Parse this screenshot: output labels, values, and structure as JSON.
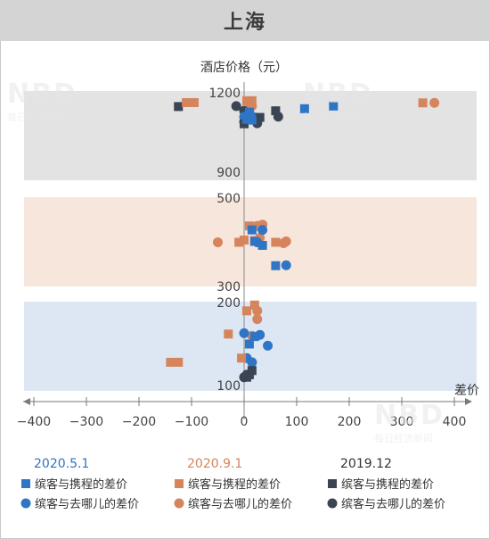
{
  "title": "上海",
  "watermark": {
    "logo": "NBD",
    "sub": "每日经济新闻"
  },
  "chart_data": {
    "type": "scatter",
    "title": "上海",
    "xlabel": "差价",
    "ylabel": "酒店价格（元）",
    "xlim": [
      -400,
      400
    ],
    "x_ticks": [
      "−400",
      "−300",
      "−200",
      "−100",
      "0",
      "100",
      "200",
      "300",
      "400"
    ],
    "panels": [
      {
        "band": "high",
        "color": "#e3e3e3",
        "ylim": [
          900,
          1200
        ],
        "ticks": [
          1200,
          900
        ]
      },
      {
        "band": "mid",
        "color": "#f7e6dc",
        "ylim": [
          300,
          500
        ],
        "ticks": [
          500,
          300
        ]
      },
      {
        "band": "low",
        "color": "#dde7f3",
        "ylim": [
          100,
          200
        ],
        "ticks": [
          200,
          100
        ]
      }
    ],
    "legend_headers": [
      {
        "label": "2020.5.1",
        "color": "#2e75c5"
      },
      {
        "label": "2020.9.1",
        "color": "#d6845c"
      },
      {
        "label": "2019.12",
        "color": "#333333"
      }
    ],
    "series": [
      {
        "name": "缤客与携程的差价",
        "period": "2020.5.1",
        "marker": "square",
        "color": "#2e75c5",
        "points": [
          [
            10,
            1127
          ],
          [
            115,
            1140
          ],
          [
            170,
            1150
          ],
          [
            5,
            1100
          ],
          [
            15,
            1097
          ],
          [
            15,
            428
          ],
          [
            20,
            402
          ],
          [
            35,
            393
          ],
          [
            60,
            347
          ],
          [
            20,
            159
          ],
          [
            10,
            150
          ]
        ]
      },
      {
        "name": "缤客与去哪儿的差价",
        "period": "2020.5.1",
        "marker": "circle",
        "color": "#2e75c5",
        "points": [
          [
            0,
            1110
          ],
          [
            10,
            1125
          ],
          [
            20,
            1107
          ],
          [
            35,
            428
          ],
          [
            25,
            400
          ],
          [
            80,
            348
          ],
          [
            0,
            163
          ],
          [
            45,
            148
          ],
          [
            5,
            133
          ],
          [
            15,
            128
          ],
          [
            30,
            161
          ]
        ]
      },
      {
        "name": "缤客与携程的差价",
        "period": "2020.9.1",
        "marker": "square",
        "color": "#d6845c",
        "points": [
          [
            -95,
            1163
          ],
          [
            -110,
            1163
          ],
          [
            5,
            1170
          ],
          [
            15,
            1170
          ],
          [
            0,
            405
          ],
          [
            20,
            404
          ],
          [
            10,
            437
          ],
          [
            -10,
            400
          ],
          [
            60,
            400
          ],
          [
            -30,
            162
          ],
          [
            5,
            190
          ],
          [
            20,
            197
          ],
          [
            -5,
            133
          ],
          [
            -140,
            128
          ],
          [
            -125,
            128
          ],
          [
            340,
            1162
          ]
        ]
      },
      {
        "name": "缤客与去哪儿的差价",
        "period": "2020.9.1",
        "marker": "circle",
        "color": "#d6845c",
        "points": [
          [
            10,
            1163
          ],
          [
            15,
            1150
          ],
          [
            -50,
            400
          ],
          [
            25,
            437
          ],
          [
            35,
            440
          ],
          [
            30,
            410
          ],
          [
            80,
            402
          ],
          [
            75,
            398
          ],
          [
            15,
            160
          ],
          [
            25,
            190
          ],
          [
            25,
            180
          ],
          [
            15,
            128
          ],
          [
            362,
            1162
          ]
        ]
      },
      {
        "name": "缤客与携程的差价",
        "period": "2019.12",
        "marker": "square",
        "color": "#3a4453",
        "points": [
          [
            -125,
            1148
          ],
          [
            60,
            1132
          ],
          [
            30,
            1107
          ],
          [
            0,
            1083
          ],
          [
            10,
            113
          ],
          [
            15,
            118
          ],
          [
            5,
            110
          ]
        ]
      },
      {
        "name": "缤客与去哪儿的差价",
        "period": "2019.12",
        "marker": "circle",
        "color": "#3a4453",
        "points": [
          [
            -15,
            1150
          ],
          [
            0,
            1132
          ],
          [
            65,
            1110
          ],
          [
            0,
            1090
          ],
          [
            25,
            1085
          ],
          [
            10,
            1113
          ],
          [
            0,
            110
          ],
          [
            5,
            113
          ]
        ]
      }
    ],
    "legend_rows": [
      [
        "缤客与携程的差价",
        "缤客与携程的差价",
        "缤客与携程的差价"
      ],
      [
        "缤客与去哪儿的差价",
        "缤客与去哪儿的差价",
        "缤客与去哪儿的差价"
      ]
    ]
  }
}
